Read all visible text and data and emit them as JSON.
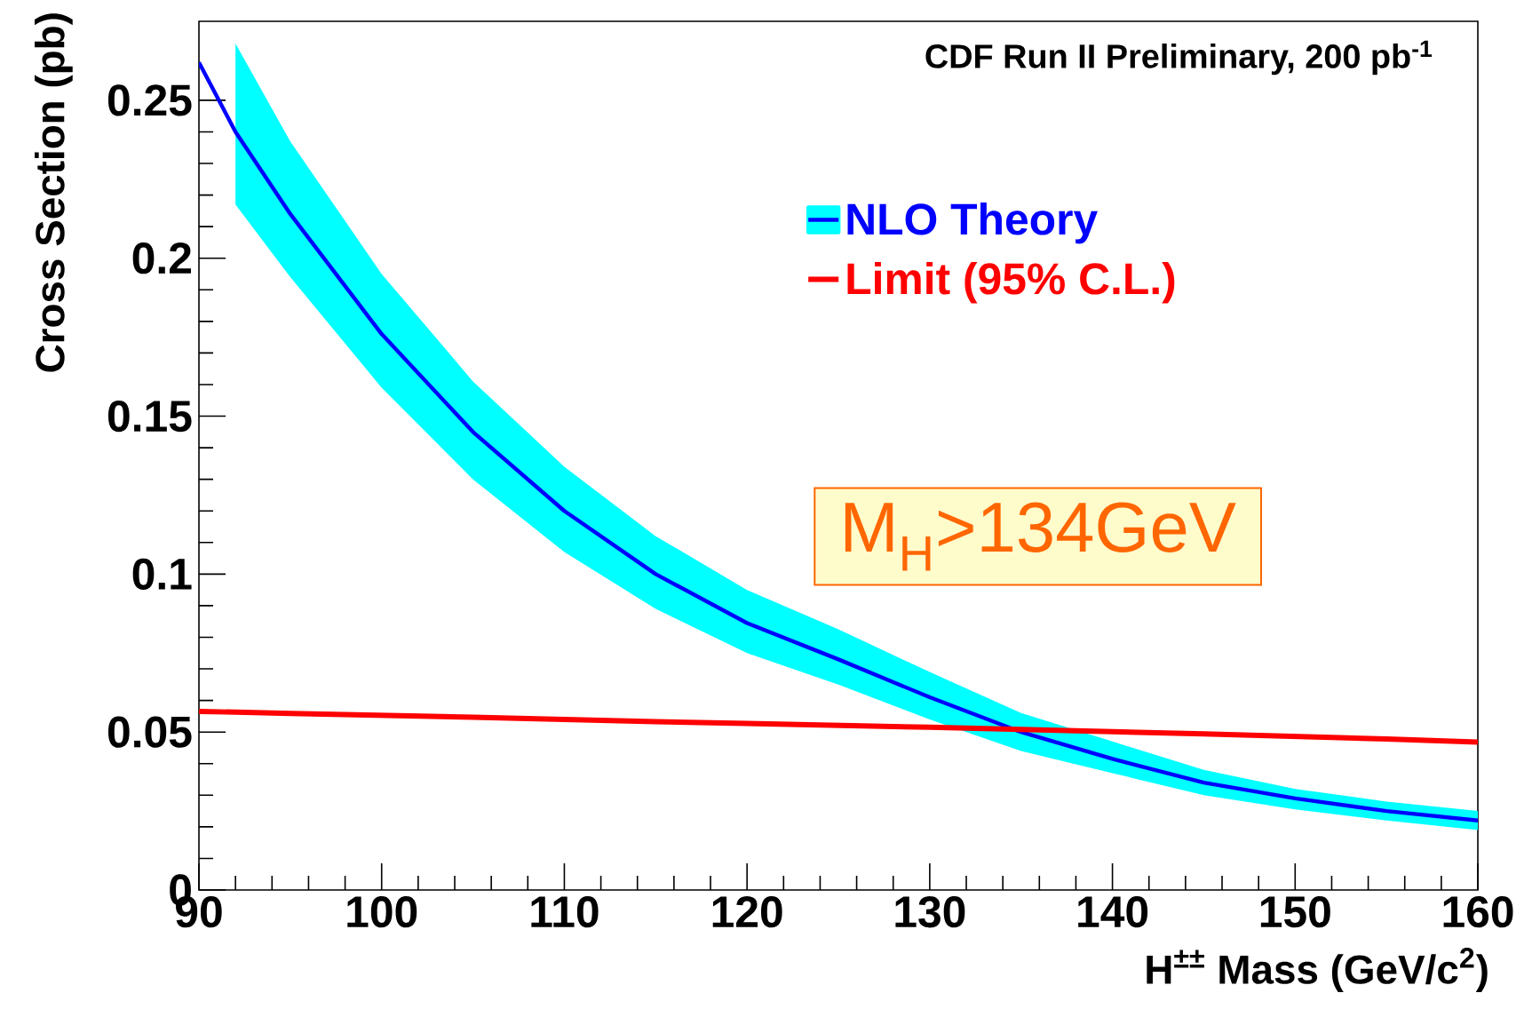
{
  "chart_data": {
    "type": "line",
    "title": "CDF Run II Preliminary, 200 pb$^{-1}$",
    "xlabel": "H$^{±±}$ Mass (GeV/c$^{2}$)",
    "ylabel": "Cross Section (pb)",
    "annotations": [
      "M$_{H}$>134GeV"
    ],
    "x": [
      90,
      92,
      95,
      100,
      105,
      110,
      115,
      120,
      125,
      130,
      135,
      140,
      145,
      150,
      155,
      160
    ],
    "series": [
      {
        "name": "NLO Theory",
        "color": "#0000ff",
        "values": [
          0.262,
          0.24,
          0.214,
          0.176,
          0.145,
          0.12,
          0.1,
          0.0845,
          0.073,
          0.061,
          0.05,
          0.0415,
          0.034,
          0.029,
          0.025,
          0.022
        ],
        "lower": [
          null,
          0.217,
          0.194,
          0.159,
          0.13,
          0.107,
          0.089,
          0.075,
          0.065,
          0.054,
          0.044,
          0.037,
          0.03,
          0.0255,
          0.022,
          0.019
        ],
        "upper": [
          null,
          0.268,
          0.237,
          0.195,
          0.161,
          0.134,
          0.112,
          0.095,
          0.0825,
          0.069,
          0.056,
          0.047,
          0.038,
          0.032,
          0.028,
          0.025
        ]
      },
      {
        "name": "Limit (95% C.L.)",
        "color": "#ff0000",
        "values": [
          0.0565,
          0.0563,
          0.0559,
          0.0553,
          0.0547,
          0.054,
          0.0533,
          0.0527,
          0.0521,
          0.0515,
          0.0508,
          0.0501,
          0.0494,
          0.0486,
          0.0478,
          0.0468
        ]
      }
    ],
    "xlim": [
      90,
      160
    ],
    "ylim": [
      0,
      0.275
    ],
    "xticks": [
      90,
      100,
      110,
      120,
      130,
      140,
      150,
      160
    ],
    "yticks": [
      0,
      0.05,
      0.1,
      0.15,
      0.2,
      0.25
    ],
    "legend": "top right"
  }
}
